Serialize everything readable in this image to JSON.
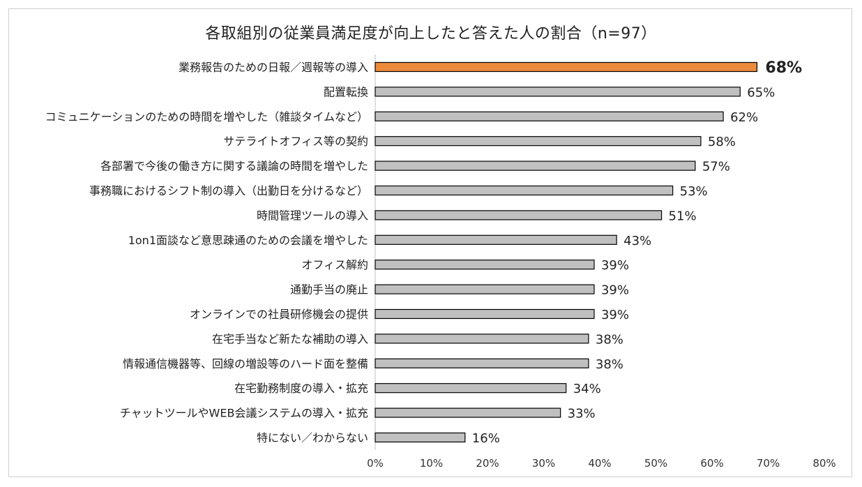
{
  "chart_data": {
    "type": "bar",
    "orientation": "horizontal",
    "title": "各取組別の従業員満足度が向上したと答えた人の割合（n=97）",
    "categories": [
      "業務報告のための日報／週報等の導入",
      "配置転換",
      "コミュニケーションのための時間を増やした（雑談タイムなど）",
      "サテライトオフィス等の契約",
      "各部署で今後の働き方に関する議論の時間を増やした",
      "事務職におけるシフト制の導入（出勤日を分けるなど）",
      "時間管理ツールの導入",
      "1on1面談など意思疎通のための会議を増やした",
      "オフィス解約",
      "通勤手当の廃止",
      "オンラインでの社員研修機会の提供",
      "在宅手当など新たな補助の導入",
      "情報通信機器等、回線の増設等のハード面を整備",
      "在宅勤務制度の導入・拡充",
      "チャットツールやWEB会議システムの導入・拡充",
      "特にない／わからない"
    ],
    "values": [
      68,
      65,
      62,
      58,
      57,
      53,
      51,
      43,
      39,
      39,
      39,
      38,
      38,
      34,
      33,
      16
    ],
    "value_labels": [
      "68%",
      "65%",
      "62%",
      "58%",
      "57%",
      "53%",
      "51%",
      "43%",
      "39%",
      "39%",
      "39%",
      "38%",
      "38%",
      "34%",
      "33%",
      "16%"
    ],
    "highlight_index": 0,
    "xlim": [
      0,
      80
    ],
    "xticks": [
      0,
      10,
      20,
      30,
      40,
      50,
      60,
      70,
      80
    ],
    "xtick_labels": [
      "0%",
      "10%",
      "20%",
      "30%",
      "40%",
      "50%",
      "60%",
      "70%",
      "80%"
    ],
    "colors": {
      "bar": "#c0c0c0",
      "bar_outline": "#000000",
      "highlight": "#ed8b3c",
      "highlight_text": "#e0782a",
      "axis": "#bfbfbf"
    },
    "grid": false
  }
}
